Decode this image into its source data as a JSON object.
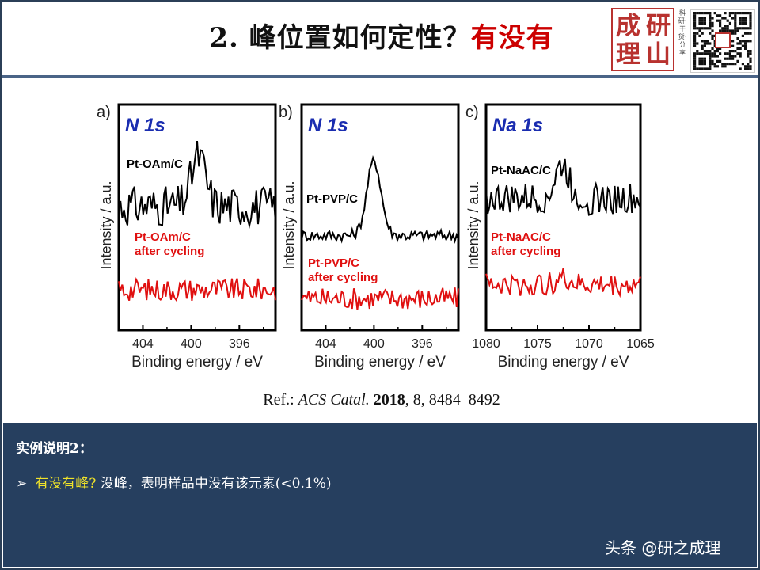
{
  "header": {
    "title_prefix": "2. 峰位置如何定性？",
    "title_highlight": "有没有",
    "seal_chars": [
      "成",
      "研",
      "理",
      "山"
    ],
    "seal_vertical_text": "科研·干货·分享"
  },
  "reference": {
    "prefix": "Ref.: ",
    "journal": "ACS Catal.",
    "year": "2018",
    "rest": ", 8, 8484–8492"
  },
  "note": {
    "heading": "实例说明2：",
    "bullet_question": "有没有峰?",
    "bullet_answer": " 没峰，表明样品中没有该元素(<0.1%)",
    "watermark": "头条 @研之成理"
  },
  "chart_data": [
    {
      "type": "line",
      "panel_label": "a)",
      "element_label": "N 1s",
      "xlabel": "Binding energy / eV",
      "ylabel": "Intensity / a.u.",
      "x_reversed": true,
      "xlim": [
        406,
        393
      ],
      "xticks": [
        404,
        400,
        396
      ],
      "peak": 399.4,
      "series": [
        {
          "name": "Pt-OAm/C",
          "color": "#000000",
          "baseline": 0.55,
          "peak_height": 0.22,
          "noise": 0.09
        },
        {
          "name": "Pt-OAm/C after cycling",
          "color": "#e01010",
          "baseline": 0.18,
          "peak_height": 0.0,
          "noise": 0.05
        }
      ]
    },
    {
      "type": "line",
      "panel_label": "b)",
      "element_label": "N 1s",
      "xlabel": "Binding energy / eV",
      "ylabel": "Intensity / a.u.",
      "x_reversed": true,
      "xlim": [
        406,
        393
      ],
      "xticks": [
        404,
        400,
        396
      ],
      "peak": 400.0,
      "series": [
        {
          "name": "Pt-PVP/C",
          "color": "#000000",
          "baseline": 0.42,
          "peak_height": 0.33,
          "noise": 0.025
        },
        {
          "name": "Pt-PVP/C after cycling",
          "color": "#e01010",
          "baseline": 0.14,
          "peak_height": 0.0,
          "noise": 0.05
        }
      ]
    },
    {
      "type": "line",
      "panel_label": "c)",
      "element_label": "Na 1s",
      "xlabel": "Binding energy / eV",
      "ylabel": "Intensity / a.u.",
      "x_reversed": true,
      "xlim": [
        1080,
        1065
      ],
      "xticks": [
        1080,
        1075,
        1070,
        1065
      ],
      "peak": 1072.6,
      "series": [
        {
          "name": "Pt-NaAC/C",
          "color": "#000000",
          "baseline": 0.58,
          "peak_height": 0.15,
          "noise": 0.07
        },
        {
          "name": "Pt-NaAC/C after cycling",
          "color": "#e01010",
          "baseline": 0.2,
          "peak_height": 0.03,
          "noise": 0.05
        }
      ]
    }
  ]
}
